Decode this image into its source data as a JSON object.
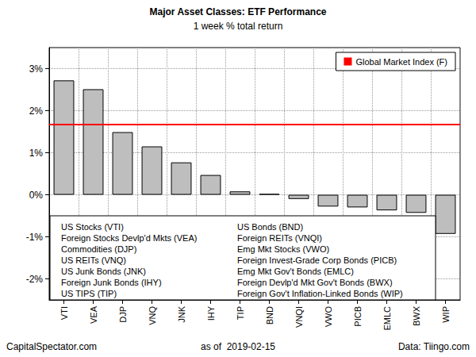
{
  "chart_data": {
    "type": "bar",
    "title": "Major Asset Classes: ETF Performance",
    "subtitle": "1 week % total return",
    "categories": [
      "VTI",
      "VEA",
      "DJP",
      "VNQ",
      "JNK",
      "IHY",
      "TIP",
      "BND",
      "VNQI",
      "VWO",
      "PICB",
      "EMLC",
      "BWX",
      "WIP"
    ],
    "values": [
      2.72,
      2.51,
      1.49,
      1.15,
      0.77,
      0.47,
      0.08,
      0.02,
      -0.1,
      -0.28,
      -0.3,
      -0.37,
      -0.43,
      -0.93
    ],
    "color": "#bebebe",
    "ylim": [
      -2.5,
      3.5
    ],
    "yticks": [
      {
        "value": -2,
        "label": "-2%"
      },
      {
        "value": -1,
        "label": "-1%"
      },
      {
        "value": 0,
        "label": "0%"
      },
      {
        "value": 1,
        "label": "1%"
      },
      {
        "value": 2,
        "label": "2%"
      },
      {
        "value": 3,
        "label": "3%"
      }
    ],
    "grid": true,
    "legend": "top-right",
    "reference_line": {
      "name": "Global Market Index (F)",
      "value": 1.68,
      "color": "#ff0000"
    },
    "annotations": [
      "US Stocks (VTI)",
      "Foreign Stocks Devlp'd Mkts (VEA)",
      "Commodities (DJP)",
      "US REITs (VNQ)",
      "US Junk Bonds (JNK)",
      "Foreign Junk Bonds (IHY)",
      "US TIPS (TIP)",
      "US Bonds (BND)",
      "Foreign REITs (VNQI)",
      "Emg Mkt Stocks (VWO)",
      "Foreign Invest-Grade Corp Bonds (PICB)",
      "Emg Mkt Gov't Bonds (EMLC)",
      "Foreign Devlp'd Mkt Gov't Bonds (BWX)",
      "Foreign Gov't Inflation-Linked Bonds (WIP)"
    ],
    "footnotes": {
      "left": "CapitalSpectator.com",
      "center": "as of  2019-02-15",
      "right": "Data: Tiingo.com"
    }
  }
}
